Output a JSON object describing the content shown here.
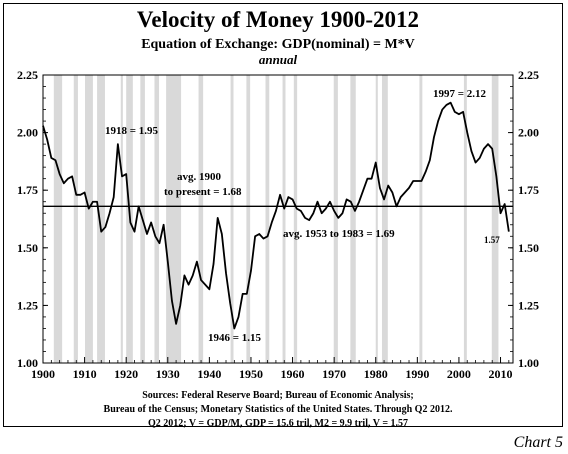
{
  "chart_data": {
    "type": "line",
    "title": "Velocity of Money 1900-2012",
    "subtitle": "Equation of Exchange: GDP(nominal) = M*V",
    "subtitle2": "annual",
    "xlim": [
      1900,
      2013
    ],
    "ylim": [
      1.0,
      2.25
    ],
    "x_ticks": [
      "1900",
      "1910",
      "1920",
      "1930",
      "1940",
      "1950",
      "1960",
      "1970",
      "1980",
      "1990",
      "2000",
      "2010"
    ],
    "y_ticks": [
      "1.00",
      "1.25",
      "1.50",
      "1.75",
      "2.00",
      "2.25"
    ],
    "grid": false,
    "recession_bars": [
      [
        1902.6,
        1904.6
      ],
      [
        1907.4,
        1908.4
      ],
      [
        1910.1,
        1912.0
      ],
      [
        1913.0,
        1914.9
      ],
      [
        1918.7,
        1919.2
      ],
      [
        1920.0,
        1921.6
      ],
      [
        1923.4,
        1924.5
      ],
      [
        1926.8,
        1927.9
      ],
      [
        1929.6,
        1933.2
      ],
      [
        1937.4,
        1938.5
      ],
      [
        1945.1,
        1945.8
      ],
      [
        1948.9,
        1949.8
      ],
      [
        1953.5,
        1954.4
      ],
      [
        1957.6,
        1958.3
      ],
      [
        1960.3,
        1961.1
      ],
      [
        1969.9,
        1970.9
      ],
      [
        1973.9,
        1975.2
      ],
      [
        1980.0,
        1980.5
      ],
      [
        1981.5,
        1982.9
      ],
      [
        1990.5,
        1991.2
      ],
      [
        2001.2,
        2001.9
      ],
      [
        2007.9,
        2009.5
      ]
    ],
    "x": [
      1900,
      1901,
      1902,
      1903,
      1904,
      1905,
      1906,
      1907,
      1908,
      1909,
      1910,
      1911,
      1912,
      1913,
      1914,
      1915,
      1916,
      1917,
      1918,
      1919,
      1920,
      1921,
      1922,
      1923,
      1924,
      1925,
      1926,
      1927,
      1928,
      1929,
      1930,
      1931,
      1932,
      1933,
      1934,
      1935,
      1936,
      1937,
      1938,
      1939,
      1940,
      1941,
      1942,
      1943,
      1944,
      1945,
      1946,
      1947,
      1948,
      1949,
      1950,
      1951,
      1952,
      1953,
      1954,
      1955,
      1956,
      1957,
      1958,
      1959,
      1960,
      1961,
      1962,
      1963,
      1964,
      1965,
      1966,
      1967,
      1968,
      1969,
      1970,
      1971,
      1972,
      1973,
      1974,
      1975,
      1976,
      1977,
      1978,
      1979,
      1980,
      1981,
      1982,
      1983,
      1984,
      1985,
      1986,
      1987,
      1988,
      1989,
      1990,
      1991,
      1992,
      1993,
      1994,
      1995,
      1996,
      1997,
      1998,
      1999,
      2000,
      2001,
      2002,
      2003,
      2004,
      2005,
      2006,
      2007,
      2008,
      2009,
      2010,
      2011,
      2012
    ],
    "series": [
      {
        "values": [
          2.03,
          1.97,
          1.89,
          1.88,
          1.82,
          1.78,
          1.8,
          1.81,
          1.73,
          1.73,
          1.74,
          1.67,
          1.7,
          1.7,
          1.57,
          1.59,
          1.65,
          1.72,
          1.95,
          1.81,
          1.82,
          1.61,
          1.57,
          1.68,
          1.62,
          1.56,
          1.61,
          1.55,
          1.52,
          1.6,
          1.44,
          1.27,
          1.17,
          1.25,
          1.38,
          1.34,
          1.38,
          1.44,
          1.36,
          1.34,
          1.32,
          1.43,
          1.63,
          1.56,
          1.39,
          1.26,
          1.15,
          1.2,
          1.3,
          1.3,
          1.4,
          1.55,
          1.56,
          1.54,
          1.55,
          1.61,
          1.66,
          1.73,
          1.67,
          1.72,
          1.71,
          1.67,
          1.66,
          1.63,
          1.62,
          1.65,
          1.7,
          1.65,
          1.67,
          1.7,
          1.66,
          1.63,
          1.65,
          1.71,
          1.7,
          1.66,
          1.7,
          1.75,
          1.8,
          1.8,
          1.87,
          1.76,
          1.71,
          1.77,
          1.74,
          1.68,
          1.72,
          1.74,
          1.76,
          1.79,
          1.79,
          1.79,
          1.83,
          1.88,
          1.98,
          2.05,
          2.1,
          2.12,
          2.13,
          2.09,
          2.08,
          2.09,
          2.0,
          1.92,
          1.87,
          1.89,
          1.93,
          1.95,
          1.93,
          1.81,
          1.65,
          1.69,
          1.57
        ]
      }
    ],
    "reference_line": {
      "value": 1.68
    },
    "annotations": [
      {
        "text": "1918 = 1.95"
      },
      {
        "text": "avg. 1900"
      },
      {
        "text": "to present = 1.68"
      },
      {
        "text": "avg. 1953 to 1983 = 1.69"
      },
      {
        "text": "1946 = 1.15"
      },
      {
        "text": "1997 = 2.12"
      },
      {
        "text": "1.57"
      }
    ],
    "source_lines": [
      "Sources: Federal Reserve Board; Bureau of Economic Analysis;",
      "Bureau of the Census; Monetary Statistics of the United States. Through Q2 2012.",
      "Q2 2012; V = GDP/M, GDP = 15.6 tril, M2 = 9.9 tril, V = 1.57"
    ],
    "chart_label": "Chart 5",
    "colors": {
      "line": "#000000",
      "recession": "#d9d9d9",
      "avg_line": "#000000"
    }
  }
}
